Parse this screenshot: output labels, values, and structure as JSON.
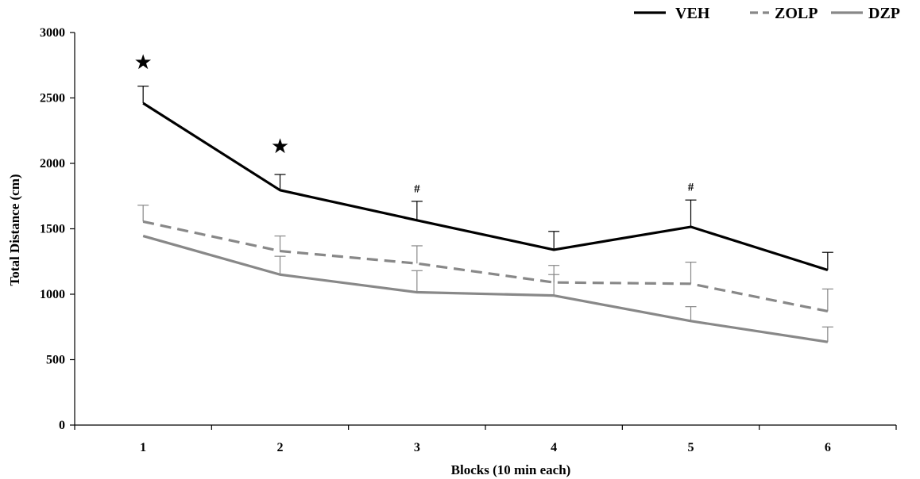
{
  "chart_data": {
    "type": "line",
    "title": "",
    "xlabel": "Blocks (10 min each)",
    "ylabel": "Total Distance (cm)",
    "x": [
      1,
      2,
      3,
      4,
      5,
      6
    ],
    "ylim": [
      0,
      3000
    ],
    "yticks": [
      0,
      500,
      1000,
      1500,
      2000,
      2500,
      3000
    ],
    "grid": false,
    "legend_position": "top-right",
    "series": [
      {
        "name": "VEH",
        "color": "#000000",
        "style": "solid",
        "values": [
          2460,
          1795,
          1565,
          1340,
          1515,
          1185
        ],
        "error": [
          130,
          120,
          145,
          140,
          205,
          135
        ]
      },
      {
        "name": "ZOLP",
        "color": "#888888",
        "style": "dashed",
        "values": [
          1555,
          1330,
          1235,
          1090,
          1080,
          870
        ],
        "error": [
          125,
          115,
          135,
          130,
          165,
          170
        ]
      },
      {
        "name": "DZP",
        "color": "#888888",
        "style": "solid",
        "values": [
          1445,
          1150,
          1015,
          990,
          795,
          635
        ],
        "error": [
          0,
          140,
          165,
          160,
          110,
          115
        ]
      }
    ],
    "annotations": [
      {
        "x": 1,
        "symbol": "★",
        "y": 2720
      },
      {
        "x": 2,
        "symbol": "★",
        "y": 2080
      },
      {
        "x": 3,
        "symbol": "#",
        "y": 1780
      },
      {
        "x": 5,
        "symbol": "#",
        "y": 1790
      }
    ]
  }
}
